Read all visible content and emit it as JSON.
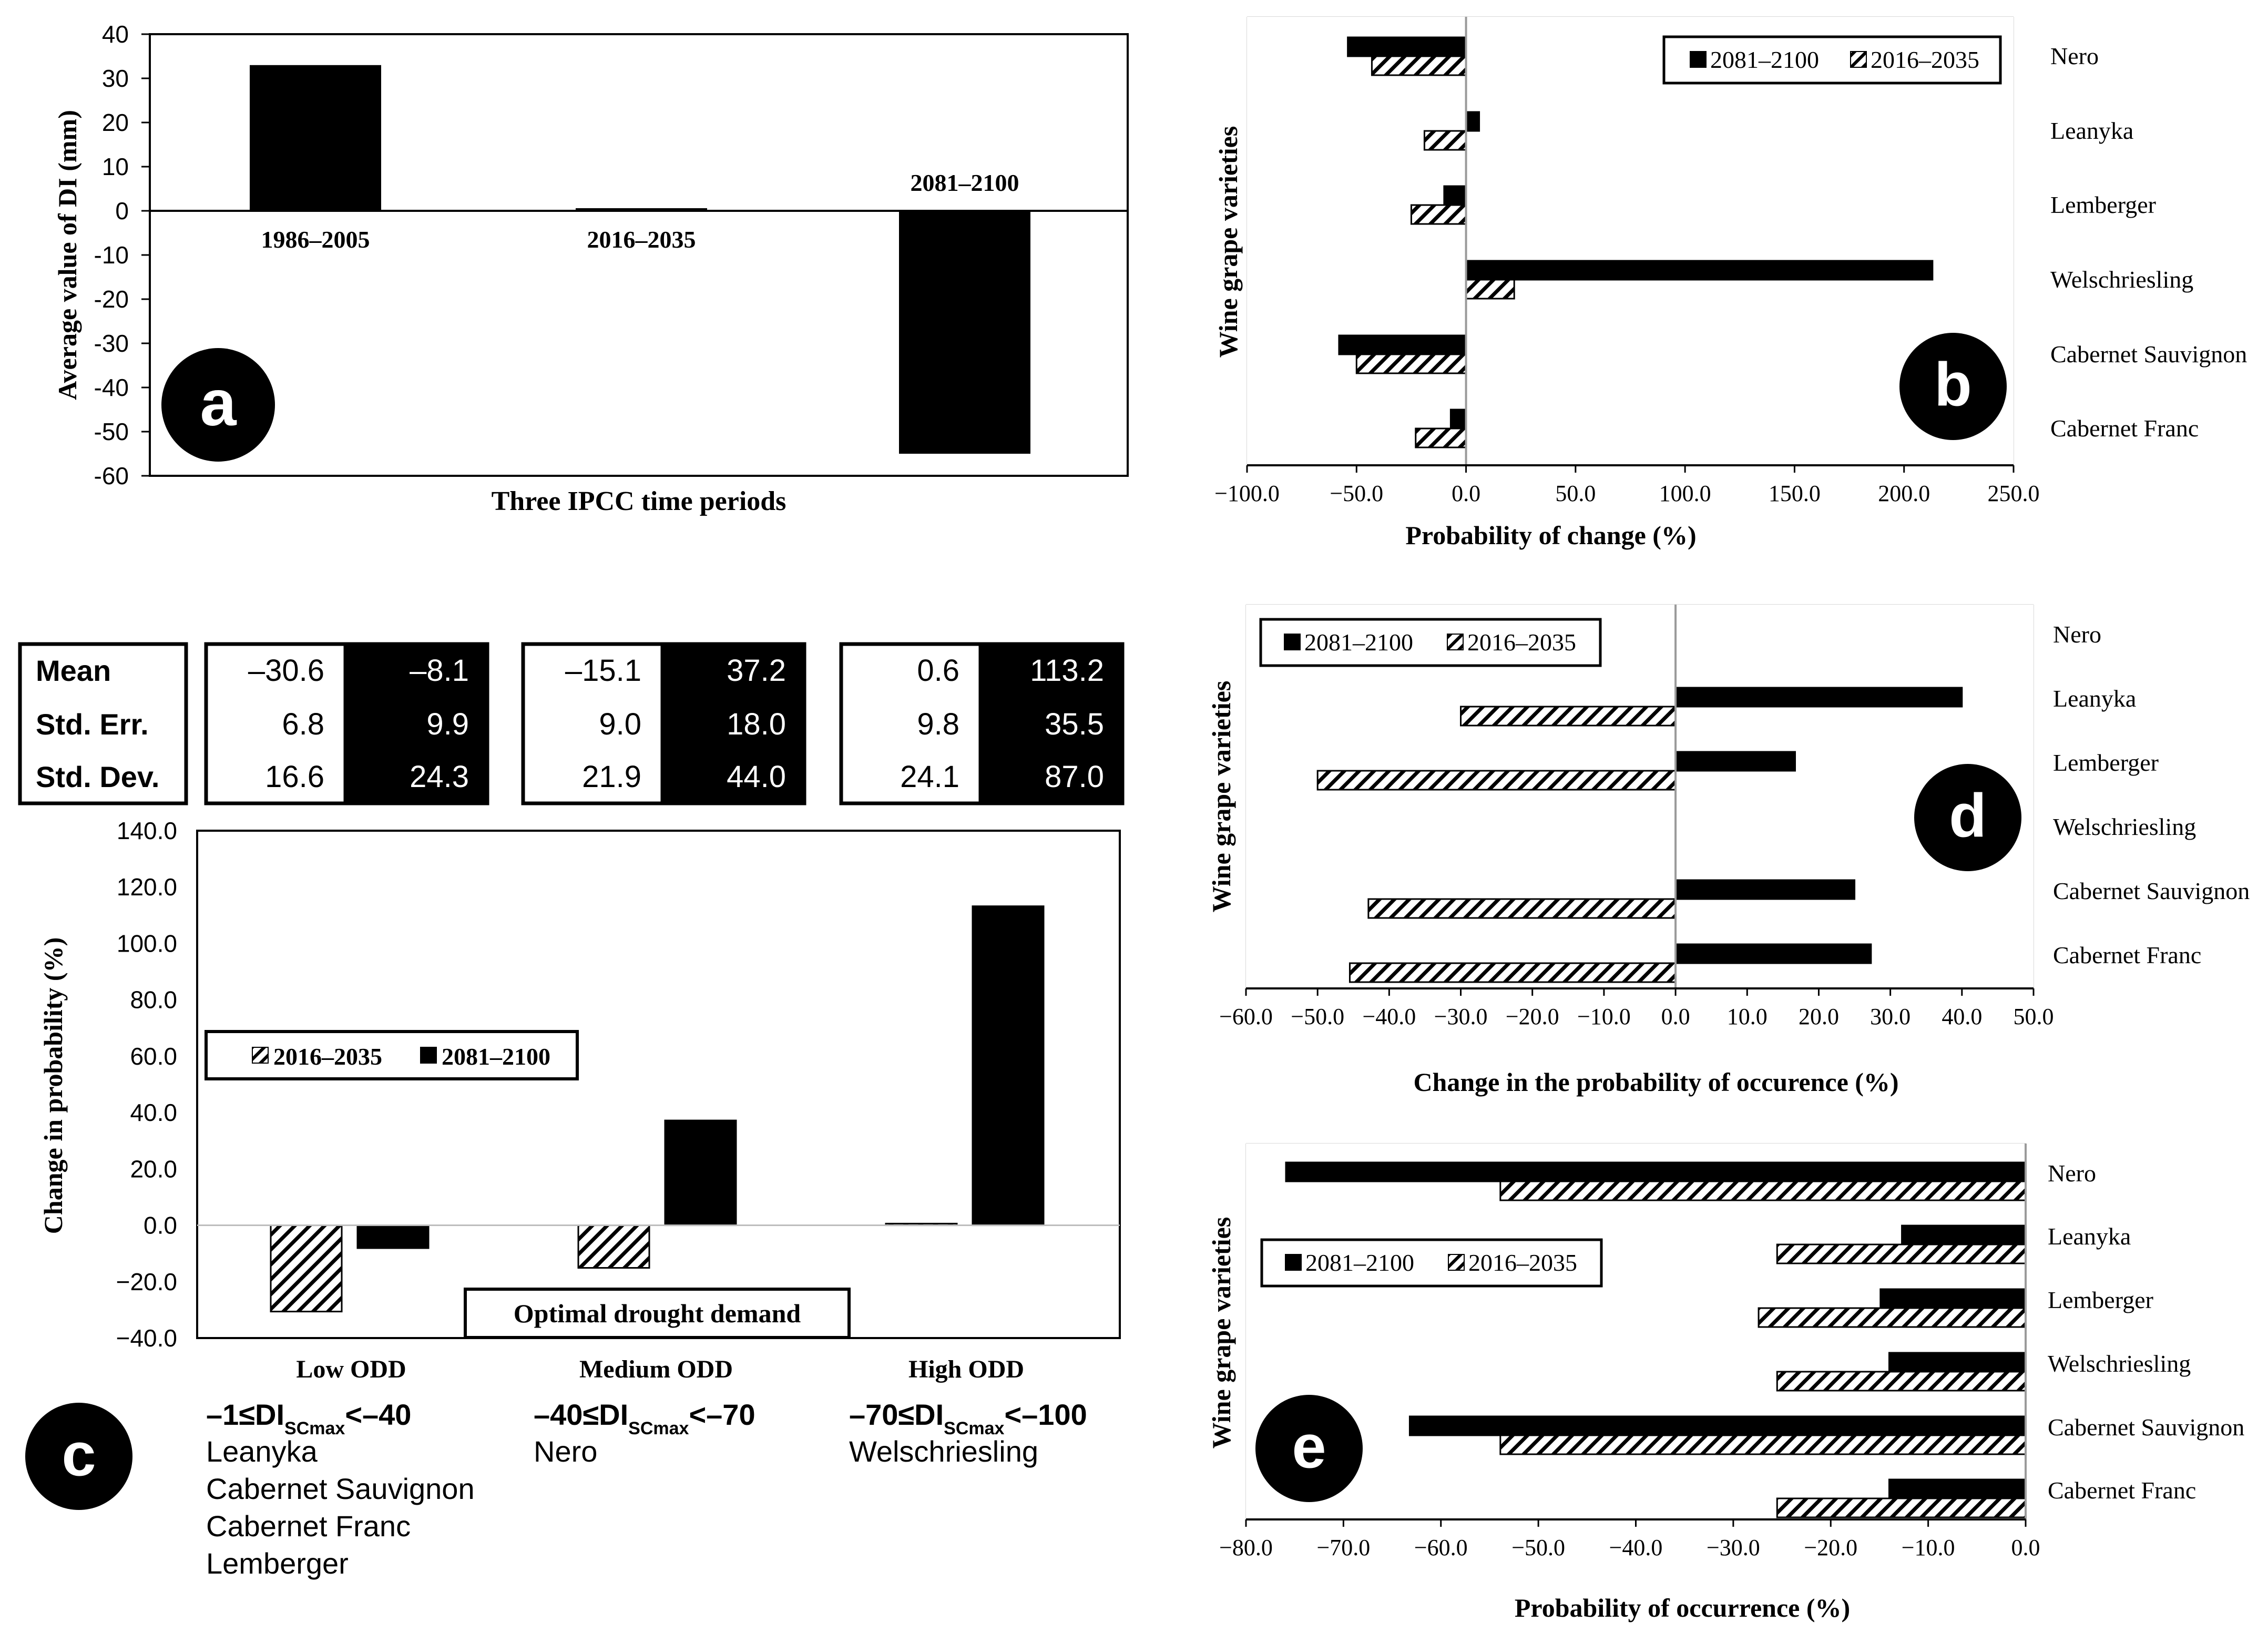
{
  "colors": {
    "black": "#000000",
    "grid": "#d9d9d9",
    "white": "#ffffff"
  },
  "chart_data": [
    {
      "id": "a",
      "type": "bar",
      "badge": "a",
      "xlabel": "Three IPCC time periods",
      "ylabel": "Average value of DI (mm)",
      "ylim": [
        -60,
        40
      ],
      "yticks": [
        40,
        30,
        20,
        10,
        0,
        -10,
        -20,
        -30,
        -40,
        -50,
        -60
      ],
      "categories": [
        "1986–2005",
        "2016–2035",
        "2081–2100"
      ],
      "values": [
        33,
        0.6,
        -55
      ]
    },
    {
      "id": "b",
      "type": "bar",
      "orientation": "horizontal",
      "badge": "b",
      "xlabel": "Probability of change (%)",
      "ylabel": "Wine grape varieties",
      "xlim": [
        -100,
        250
      ],
      "xticks": [
        "−100.0",
        "−50.0",
        "0.0",
        "50.0",
        "100.0",
        "150.0",
        "200.0",
        "250.0"
      ],
      "categories": [
        "Nero",
        "Leanyka",
        "Lemberger",
        "Welschriesling",
        "Cabernet Sauvignon",
        "Cabernet Franc"
      ],
      "series": [
        {
          "name": "2081–2100",
          "style": "solid",
          "values": [
            -54,
            6,
            -10,
            213,
            -58,
            -7
          ]
        },
        {
          "name": "2016–2035",
          "style": "hatched",
          "values": [
            -43,
            -19,
            -25,
            22,
            -50,
            -23
          ]
        }
      ],
      "legend": "top-right"
    },
    {
      "id": "c",
      "type": "bar",
      "badge": "c",
      "ylabel": "Change in probability (%)",
      "xlabel": "Optimal drought demand",
      "ylim": [
        -40,
        140
      ],
      "yticks": [
        "140.0",
        "120.0",
        "100.0",
        "80.0",
        "60.0",
        "40.0",
        "20.0",
        "0.0",
        "−20.0",
        "−40.0"
      ],
      "categories": [
        "Low  ODD",
        "Medium ODD",
        "High ODD"
      ],
      "series": [
        {
          "name": "2016–2035",
          "style": "hatched",
          "values": [
            -30.6,
            -15.1,
            0.6
          ]
        },
        {
          "name": "2081–2100",
          "style": "solid",
          "values": [
            -8.1,
            37.2,
            113.2
          ]
        }
      ],
      "legend": "middle-left",
      "stats": {
        "row_labels": [
          "Mean",
          "Std. Err.",
          "Std. Dev."
        ],
        "groups": [
          {
            "p2016": [
              "–30.6",
              "6.8",
              "16.6"
            ],
            "p2081": [
              "–8.1",
              "9.9",
              "24.3"
            ]
          },
          {
            "p2016": [
              "–15.1",
              "9.0",
              "21.9"
            ],
            "p2081": [
              "37.2",
              "18.0",
              "44.0"
            ]
          },
          {
            "p2016": [
              "0.6",
              "9.8",
              "24.1"
            ],
            "p2081": [
              "113.2",
              "35.5",
              "87.0"
            ]
          }
        ]
      },
      "classes": [
        {
          "pre": "–1≤DI",
          "sub": "SCmax",
          "post": "<–40",
          "varieties": [
            "Leanyka",
            "Cabernet Sauvignon",
            "Cabernet Franc",
            "Lemberger"
          ]
        },
        {
          "pre": "–40≤DI",
          "sub": "SCmax",
          "post": "<–70",
          "varieties": [
            "Nero"
          ]
        },
        {
          "pre": "–70≤DI",
          "sub": "SCmax",
          "post": "<–100",
          "varieties": [
            "Welschriesling"
          ]
        }
      ]
    },
    {
      "id": "d",
      "type": "bar",
      "orientation": "horizontal",
      "badge": "d",
      "xlabel": "Change in the probability of occurence (%)",
      "ylabel": "Wine grape varieties",
      "xlim": [
        -60,
        50
      ],
      "xticks": [
        "−60.0",
        "−50.0",
        "−40.0",
        "−30.0",
        "−20.0",
        "−10.0",
        "0.0",
        "10.0",
        "20.0",
        "30.0",
        "40.0",
        "50.0"
      ],
      "categories": [
        "Nero",
        "Leanyka",
        "Lemberger",
        "Welschriesling",
        "Cabernet Sauvignon",
        "Cabernet Franc"
      ],
      "series": [
        {
          "name": "2081–2100",
          "style": "solid",
          "values": [
            0,
            40,
            16.7,
            0,
            25,
            27.3
          ]
        },
        {
          "name": "2016–2035",
          "style": "hatched",
          "values": [
            0,
            -30,
            -50,
            0,
            -42.9,
            -45.5
          ]
        }
      ],
      "legend": "top-left"
    },
    {
      "id": "e",
      "type": "bar",
      "orientation": "horizontal",
      "badge": "e",
      "xlabel": "Probability of occurrence (%)",
      "ylabel": "Wine grape varieties",
      "xlim": [
        -80,
        0
      ],
      "xticks": [
        "−80.0",
        "−70.0",
        "−60.0",
        "−50.0",
        "−40.0",
        "−30.0",
        "−20.0",
        "−10.0",
        "0.0"
      ],
      "categories": [
        "Nero",
        "Leanyka",
        "Lemberger",
        "Welschriesling",
        "Cabernet Sauvignon",
        "Cabernet Franc"
      ],
      "series": [
        {
          "name": "2081–2100",
          "style": "solid",
          "values": [
            -75.9,
            -12.7,
            -14.9,
            -14,
            -63.2,
            -14
          ]
        },
        {
          "name": "2016–2035",
          "style": "hatched",
          "values": [
            -53.9,
            -25.5,
            -27.4,
            -25.5,
            -53.9,
            -25.5
          ]
        }
      ],
      "legend": "middle-left"
    }
  ]
}
